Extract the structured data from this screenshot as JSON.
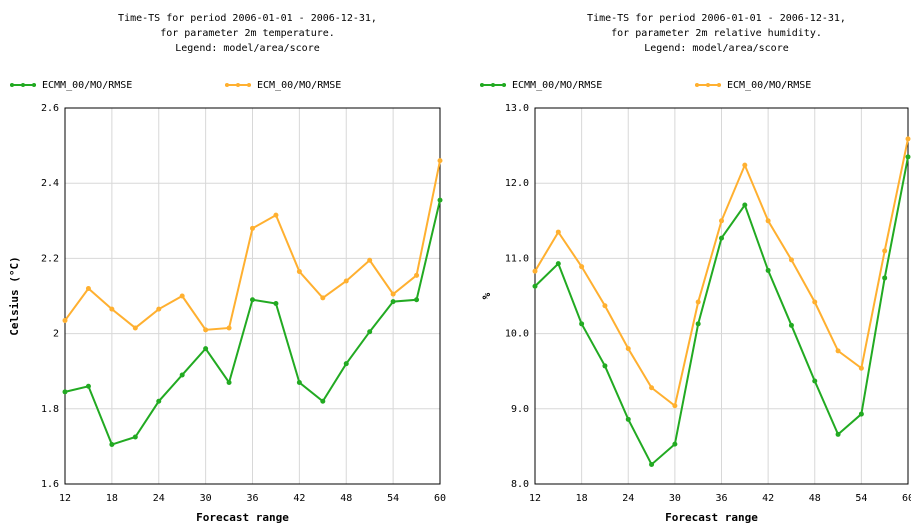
{
  "chart_data": [
    {
      "type": "line",
      "title": [
        "Time-TS for period 2006-01-01 - 2006-12-31,",
        "for parameter 2m temperature.",
        "Legend: model/area/score"
      ],
      "x_label": "Forecast range",
      "y_label": "Celsius (°C)",
      "x": [
        12,
        15,
        18,
        21,
        24,
        27,
        30,
        33,
        36,
        39,
        42,
        45,
        48,
        51,
        54,
        57,
        60
      ],
      "xlim": [
        12,
        60
      ],
      "xticks": [
        12,
        18,
        24,
        30,
        36,
        42,
        48,
        54,
        60
      ],
      "ylim": [
        1.6,
        2.6
      ],
      "yticks": [
        1.6,
        1.8,
        2.0,
        2.2,
        2.4,
        2.6
      ],
      "grid": true,
      "series": [
        {
          "name": "ECMM_00/MO/RMSE",
          "color": "#22aa22",
          "values": [
            1.845,
            1.86,
            1.705,
            1.725,
            1.82,
            1.89,
            1.96,
            1.87,
            2.09,
            2.08,
            1.87,
            1.82,
            1.92,
            2.005,
            2.085,
            2.09,
            2.355
          ]
        },
        {
          "name": "ECM_00/MO/RMSE",
          "color": "#ffb030",
          "values": [
            2.035,
            2.12,
            2.065,
            2.015,
            2.065,
            2.1,
            2.01,
            2.015,
            2.28,
            2.315,
            2.165,
            2.095,
            2.14,
            2.195,
            2.105,
            2.155,
            2.46
          ]
        }
      ]
    },
    {
      "type": "line",
      "title": [
        "Time-TS for period 2006-01-01 - 2006-12-31,",
        "for parameter 2m relative humidity.",
        "Legend: model/area/score"
      ],
      "x_label": "Forecast range",
      "y_label": "%",
      "x": [
        12,
        15,
        18,
        21,
        24,
        27,
        30,
        33,
        36,
        39,
        42,
        45,
        48,
        51,
        54,
        57,
        60
      ],
      "xlim": [
        12,
        60
      ],
      "xticks": [
        12,
        18,
        24,
        30,
        36,
        42,
        48,
        54,
        60
      ],
      "ylim": [
        8,
        13
      ],
      "yticks": [
        {
          "value": 8,
          "label": "8.0"
        },
        {
          "value": 9,
          "label": "9.0"
        },
        {
          "value": 10,
          "label": "10.0"
        },
        {
          "value": 11,
          "label": "11.0"
        },
        {
          "value": 12,
          "label": "12.0"
        },
        {
          "value": 13,
          "label": "13.0"
        }
      ],
      "grid": true,
      "series": [
        {
          "name": "ECMM_00/MO/RMSE",
          "color": "#22aa22",
          "values": [
            10.63,
            10.93,
            10.13,
            9.57,
            8.86,
            8.26,
            8.53,
            10.13,
            11.27,
            11.71,
            10.84,
            10.11,
            9.37,
            8.66,
            8.93,
            10.74,
            12.35
          ]
        },
        {
          "name": "ECM_00/MO/RMSE",
          "color": "#ffb030",
          "values": [
            10.83,
            11.35,
            10.89,
            10.37,
            9.8,
            9.28,
            9.04,
            10.42,
            11.5,
            12.24,
            11.5,
            10.98,
            10.42,
            9.77,
            9.54,
            11.1,
            12.59
          ]
        }
      ]
    }
  ]
}
